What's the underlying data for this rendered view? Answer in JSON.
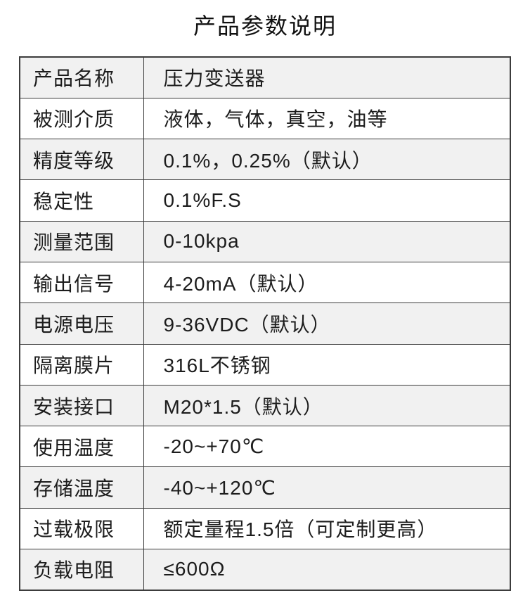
{
  "page": {
    "title": "产品参数说明"
  },
  "table": {
    "rows": [
      {
        "label": "产品名称",
        "value": "压力变送器"
      },
      {
        "label": "被测介质",
        "value": "液体，气体，真空，油等"
      },
      {
        "label": "精度等级",
        "value": "0.1%，0.25%（默认）"
      },
      {
        "label": "稳定性",
        "value": "0.1%F.S"
      },
      {
        "label": "测量范围",
        "value": "0-10kpa"
      },
      {
        "label": "输出信号",
        "value": "4-20mA（默认）"
      },
      {
        "label": "电源电压",
        "value": "9-36VDC（默认）"
      },
      {
        "label": "隔离膜片",
        "value": "316L不锈钢"
      },
      {
        "label": "安装接口",
        "value": "M20*1.5（默认）"
      },
      {
        "label": "使用温度",
        "value": "-20~+70℃"
      },
      {
        "label": "存储温度",
        "value": "-40~+120℃"
      },
      {
        "label": "过载极限",
        "value": "额定量程1.5倍（可定制更高）"
      },
      {
        "label": "负载电阻",
        "value": "≤600Ω"
      }
    ]
  },
  "colors": {
    "row_shade": "#f1f1f1",
    "row_plain": "#ffffff",
    "border": "#3c3c3c",
    "text": "#1c1c1c"
  }
}
